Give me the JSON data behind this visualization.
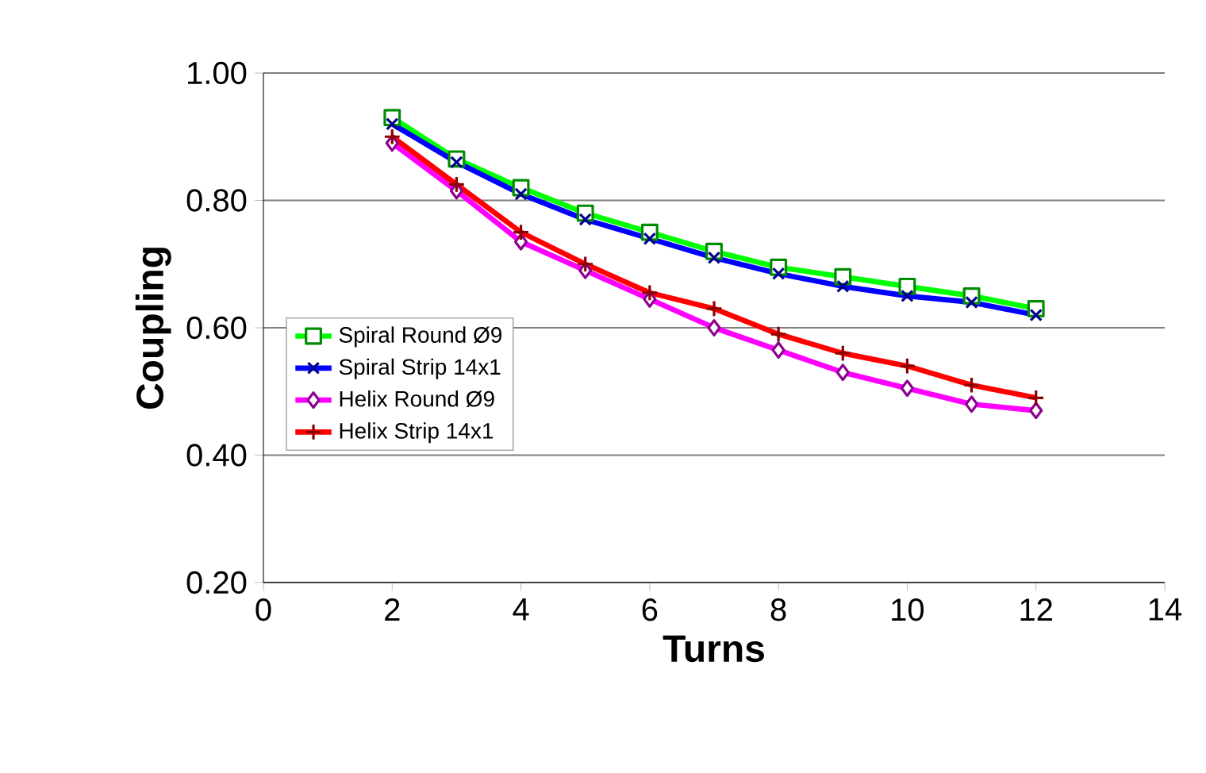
{
  "chart_data": {
    "type": "line",
    "xlabel": "Turns",
    "ylabel": "Coupling",
    "xlim": [
      0,
      14
    ],
    "xticks": [
      0,
      2,
      4,
      6,
      8,
      10,
      12,
      14
    ],
    "ylim": [
      0.2,
      1.0
    ],
    "yticks": [
      {
        "value": 0.2,
        "label": "0.20"
      },
      {
        "value": 0.4,
        "label": "0.40"
      },
      {
        "value": 0.6,
        "label": "0.60"
      },
      {
        "value": 0.8,
        "label": "0.80"
      },
      {
        "value": 1.0,
        "label": "1.00"
      }
    ],
    "grid": "y",
    "legend": "left",
    "x": [
      2,
      3,
      4,
      5,
      6,
      7,
      8,
      9,
      10,
      11,
      12
    ],
    "series": [
      {
        "name": "Spiral Round Ø9",
        "color": "#00ff00",
        "marker": "square",
        "values": [
          0.93,
          0.865,
          0.82,
          0.78,
          0.75,
          0.72,
          0.695,
          0.68,
          0.665,
          0.65,
          0.63
        ]
      },
      {
        "name": "Spiral Strip 14x1",
        "color": "#0000ff",
        "marker": "cross",
        "values": [
          0.92,
          0.86,
          0.81,
          0.77,
          0.74,
          0.71,
          0.685,
          0.665,
          0.65,
          0.64,
          0.62
        ]
      },
      {
        "name": "Helix Round Ø9",
        "color": "#ff00ff",
        "marker": "diamond",
        "values": [
          0.89,
          0.815,
          0.735,
          0.69,
          0.645,
          0.6,
          0.565,
          0.53,
          0.505,
          0.48,
          0.47
        ]
      },
      {
        "name": "Helix Strip 14x1",
        "color": "#ff0000",
        "marker": "plus",
        "values": [
          0.9,
          0.825,
          0.75,
          0.7,
          0.655,
          0.63,
          0.59,
          0.56,
          0.54,
          0.51,
          0.49
        ]
      }
    ]
  }
}
